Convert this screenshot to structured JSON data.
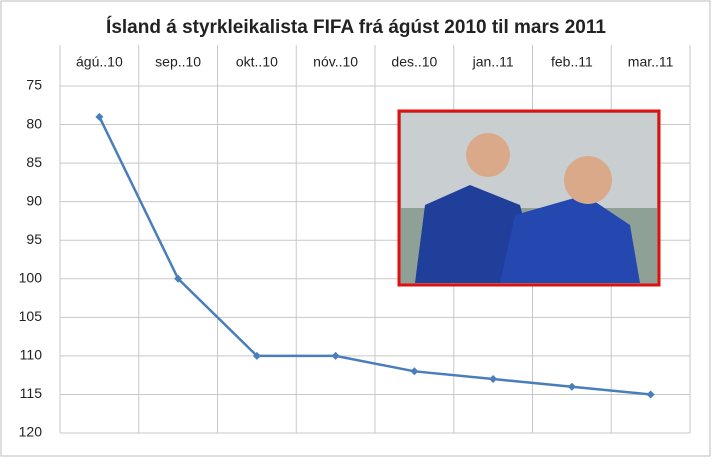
{
  "chart_data": {
    "type": "line",
    "title": "Ísland á styrkleikalista FIFA frá ágúst 2010 til mars 2011",
    "categories": [
      "ágú..10",
      "sep..10",
      "okt..10",
      "nóv..10",
      "des..10",
      "jan..11",
      "feb..11",
      "mar..11"
    ],
    "series": [
      {
        "color": "#4a7ebb",
        "values": [
          79,
          100,
          110,
          110,
          112,
          113,
          114,
          115
        ]
      }
    ],
    "ylim": [
      75,
      120
    ],
    "y_reversed": true,
    "yticks": [
      75,
      80,
      85,
      90,
      95,
      100,
      105,
      110,
      115,
      120
    ],
    "grid": true
  }
}
